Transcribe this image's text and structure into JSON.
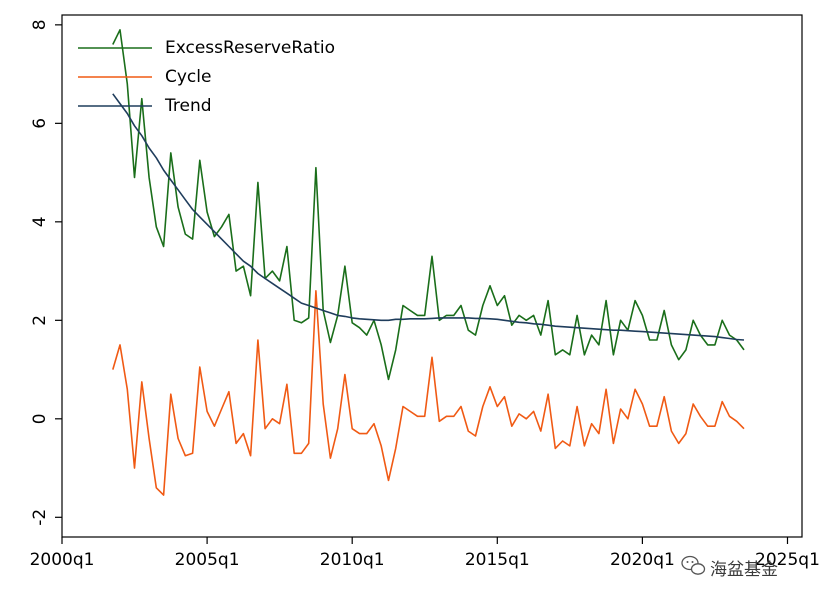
{
  "chart_data": {
    "type": "line",
    "title": "",
    "xlabel": "",
    "ylabel": "",
    "xlim": [
      2000.0,
      2025.5
    ],
    "ylim": [
      -2.4,
      8.2
    ],
    "x_ticks": [
      {
        "value": 2000.0,
        "label": "2000q1"
      },
      {
        "value": 2005.0,
        "label": "2005q1"
      },
      {
        "value": 2010.0,
        "label": "2010q1"
      },
      {
        "value": 2015.0,
        "label": "2015q1"
      },
      {
        "value": 2020.0,
        "label": "2020q1"
      },
      {
        "value": 2025.0,
        "label": "2025q1"
      }
    ],
    "y_ticks": [
      {
        "value": -2,
        "label": "-2"
      },
      {
        "value": 0,
        "label": "0"
      },
      {
        "value": 2,
        "label": "2"
      },
      {
        "value": 4,
        "label": "4"
      },
      {
        "value": 6,
        "label": "6"
      },
      {
        "value": 8,
        "label": "8"
      }
    ],
    "grid": false,
    "legend_position": "top-left",
    "x": [
      2001.75,
      2002.0,
      2002.25,
      2002.5,
      2002.75,
      2003.0,
      2003.25,
      2003.5,
      2003.75,
      2004.0,
      2004.25,
      2004.5,
      2004.75,
      2005.0,
      2005.25,
      2005.5,
      2005.75,
      2006.0,
      2006.25,
      2006.5,
      2006.75,
      2007.0,
      2007.25,
      2007.5,
      2007.75,
      2008.0,
      2008.25,
      2008.5,
      2008.75,
      2009.0,
      2009.25,
      2009.5,
      2009.75,
      2010.0,
      2010.25,
      2010.5,
      2010.75,
      2011.0,
      2011.25,
      2011.5,
      2011.75,
      2012.0,
      2012.25,
      2012.5,
      2012.75,
      2013.0,
      2013.25,
      2013.5,
      2013.75,
      2014.0,
      2014.25,
      2014.5,
      2014.75,
      2015.0,
      2015.25,
      2015.5,
      2015.75,
      2016.0,
      2016.25,
      2016.5,
      2016.75,
      2017.0,
      2017.25,
      2017.5,
      2017.75,
      2018.0,
      2018.25,
      2018.5,
      2018.75,
      2019.0,
      2019.25,
      2019.5,
      2019.75,
      2020.0,
      2020.25,
      2020.5,
      2020.75,
      2021.0,
      2021.25,
      2021.5,
      2021.75,
      2022.0,
      2022.25,
      2022.5,
      2022.75,
      2023.0,
      2023.25,
      2023.5
    ],
    "series": [
      {
        "name": "ExcessReserveRatio",
        "color": "#1a6e1a",
        "values": [
          7.6,
          7.9,
          6.8,
          4.9,
          6.5,
          4.9,
          3.9,
          3.5,
          5.4,
          4.3,
          3.75,
          3.65,
          5.25,
          4.2,
          3.7,
          3.9,
          4.15,
          3.0,
          3.1,
          2.5,
          4.8,
          2.85,
          3.0,
          2.8,
          3.5,
          2.0,
          1.95,
          2.05,
          5.1,
          2.2,
          1.55,
          2.1,
          3.1,
          1.95,
          1.85,
          1.7,
          2.0,
          1.5,
          0.8,
          1.4,
          2.3,
          2.2,
          2.1,
          2.1,
          3.3,
          2.0,
          2.1,
          2.1,
          2.3,
          1.8,
          1.7,
          2.3,
          2.7,
          2.3,
          2.5,
          1.9,
          2.1,
          2.0,
          2.1,
          1.7,
          2.4,
          1.3,
          1.4,
          1.3,
          2.1,
          1.3,
          1.7,
          1.5,
          2.4,
          1.3,
          2.0,
          1.8,
          2.4,
          2.1,
          1.6,
          1.6,
          2.2,
          1.5,
          1.2,
          1.4,
          2.0,
          1.7,
          1.5,
          1.5,
          2.0,
          1.7,
          1.6,
          1.4
        ]
      },
      {
        "name": "Cycle",
        "color": "#f05a14",
        "values": [
          1.0,
          1.5,
          0.6,
          -1.0,
          0.75,
          -0.4,
          -1.4,
          -1.55,
          0.5,
          -0.4,
          -0.75,
          -0.7,
          1.05,
          0.15,
          -0.15,
          0.2,
          0.55,
          -0.5,
          -0.3,
          -0.75,
          1.6,
          -0.2,
          0.0,
          -0.1,
          0.7,
          -0.7,
          -0.7,
          -0.5,
          2.6,
          0.3,
          -0.8,
          -0.2,
          0.9,
          -0.2,
          -0.3,
          -0.3,
          -0.1,
          -0.55,
          -1.25,
          -0.6,
          0.25,
          0.15,
          0.05,
          0.05,
          1.25,
          -0.05,
          0.05,
          0.05,
          0.25,
          -0.25,
          -0.35,
          0.25,
          0.65,
          0.25,
          0.45,
          -0.15,
          0.1,
          0.0,
          0.15,
          -0.25,
          0.5,
          -0.6,
          -0.45,
          -0.55,
          0.25,
          -0.55,
          -0.1,
          -0.3,
          0.6,
          -0.5,
          0.2,
          0.0,
          0.6,
          0.3,
          -0.15,
          -0.15,
          0.45,
          -0.25,
          -0.5,
          -0.3,
          0.3,
          0.05,
          -0.15,
          -0.15,
          0.35,
          0.05,
          -0.05,
          -0.2
        ]
      },
      {
        "name": "Trend",
        "color": "#1f3d5c",
        "values": [
          6.6,
          6.4,
          6.2,
          5.95,
          5.75,
          5.5,
          5.3,
          5.05,
          4.85,
          4.65,
          4.45,
          4.25,
          4.1,
          3.95,
          3.8,
          3.65,
          3.5,
          3.35,
          3.2,
          3.1,
          2.95,
          2.85,
          2.75,
          2.65,
          2.55,
          2.45,
          2.35,
          2.3,
          2.25,
          2.2,
          2.15,
          2.1,
          2.08,
          2.05,
          2.03,
          2.02,
          2.01,
          2.0,
          2.0,
          2.02,
          2.02,
          2.03,
          2.03,
          2.03,
          2.04,
          2.05,
          2.05,
          2.05,
          2.05,
          2.05,
          2.04,
          2.04,
          2.03,
          2.02,
          2.0,
          1.98,
          1.96,
          1.95,
          1.93,
          1.92,
          1.9,
          1.88,
          1.87,
          1.86,
          1.85,
          1.84,
          1.83,
          1.82,
          1.81,
          1.8,
          1.8,
          1.79,
          1.78,
          1.77,
          1.76,
          1.75,
          1.74,
          1.73,
          1.72,
          1.71,
          1.7,
          1.69,
          1.68,
          1.67,
          1.65,
          1.63,
          1.61,
          1.6
        ]
      }
    ]
  },
  "watermark": {
    "text": "海盆基金",
    "icon": "wechat-icon"
  }
}
